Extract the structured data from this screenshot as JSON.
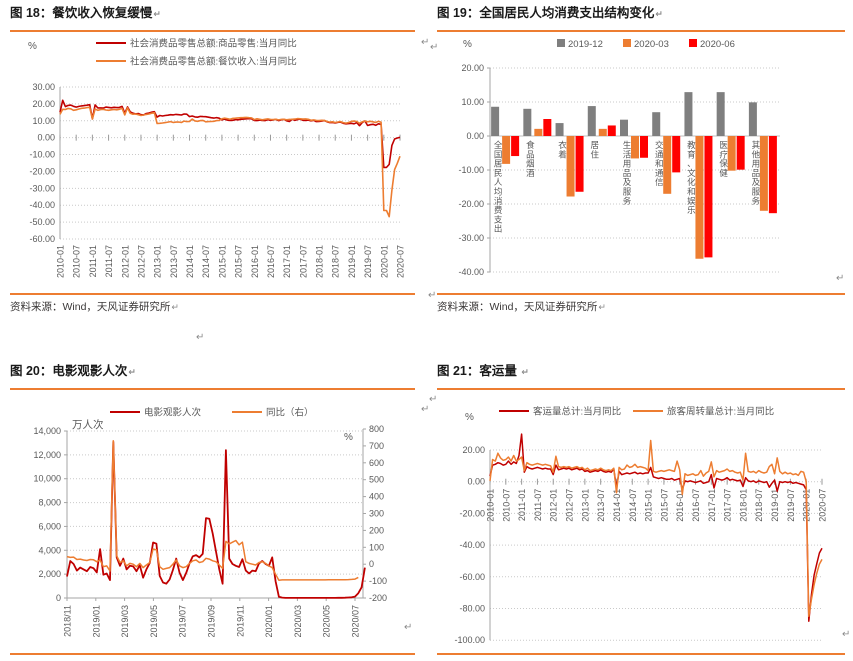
{
  "marks": {
    "return_char": "↵"
  },
  "colors": {
    "dark_red": "#C00000",
    "orange": "#ED7D31",
    "bright_red": "#FF0000",
    "gray_series": "#7F7F7F",
    "rule_orange": "#ED7D31",
    "tick_text": "#595959",
    "gridline": "#C9C9C9",
    "axis_line": "#A6A6A6"
  },
  "chart_data": [
    {
      "id": "fig18",
      "type": "line",
      "title": "图 18：餐饮收入恢复缓慢",
      "source": "资料来源：Wind，天风证券研究所",
      "ylabel": "%",
      "ylim": [
        -60,
        30
      ],
      "ytick_step": 10,
      "grid": "dotted",
      "legend_position": "top-left-stacked",
      "x_tick_labels": [
        "2010-01",
        "2010-07",
        "2011-01",
        "2011-07",
        "2012-01",
        "2012-07",
        "2013-01",
        "2013-07",
        "2014-01",
        "2014-07",
        "2015-01",
        "2015-07",
        "2016-01",
        "2016-07",
        "2017-01",
        "2017-07",
        "2018-01",
        "2018-07",
        "2019-01",
        "2019-07",
        "2020-01",
        "2020-07"
      ],
      "months_per_tick": 6,
      "series": [
        {
          "name": "社会消费品零售总额:商品零售:当月同比",
          "color": "#C00000",
          "values": [
            15.0,
            22.1,
            18.4,
            19.1,
            19.3,
            18.6,
            18.1,
            18.5,
            18.8,
            19.0,
            19.2,
            19.5,
            11.2,
            19.4,
            17.6,
            17.6,
            17.5,
            18.1,
            17.9,
            17.7,
            18.0,
            17.8,
            17.9,
            18.5,
            14.5,
            18.2,
            15.3,
            14.5,
            14.1,
            14.3,
            13.6,
            13.5,
            14.3,
            14.6,
            15.1,
            15.4,
            12.2,
            13.1,
            12.8,
            13.1,
            13.3,
            13.6,
            13.5,
            13.8,
            13.6,
            13.4,
            14.0,
            13.9,
            12.5,
            12.8,
            12.3,
            12.1,
            12.6,
            12.5,
            12.4,
            12.1,
            11.8,
            11.6,
            11.9,
            11.5,
            10.5,
            11.0,
            10.4,
            10.2,
            10.3,
            10.7,
            10.6,
            10.9,
            11.0,
            11.2,
            11.3,
            11.2,
            10.2,
            10.1,
            10.4,
            10.2,
            10.1,
            10.7,
            10.3,
            10.5,
            10.8,
            10.1,
            10.6,
            10.9,
            10.0,
            9.6,
            10.9,
            10.3,
            10.7,
            11.0,
            10.3,
            10.2,
            10.4,
            10.0,
            10.3,
            9.5,
            9.6,
            9.8,
            10.1,
            9.4,
            8.9,
            9.0,
            8.7,
            9.1,
            9.2,
            8.5,
            8.2,
            8.3,
            8.5,
            8.2,
            8.9,
            7.1,
            8.9,
            9.9,
            7.2,
            7.7,
            7.9,
            7.3,
            8.2,
            7.9,
            -17.6,
            -17.6,
            -15.8,
            -4.6,
            -0.8,
            -0.2,
            0.2
          ]
        },
        {
          "name": "社会消费品零售总额:餐饮收入:当月同比",
          "color": "#ED7D31",
          "values": [
            13.8,
            16.8,
            16.7,
            17.3,
            17.1,
            16.2,
            16.5,
            17.0,
            17.4,
            17.5,
            17.8,
            18.0,
            11.0,
            17.0,
            16.2,
            16.6,
            16.8,
            16.4,
            16.2,
            16.5,
            16.7,
            16.5,
            16.8,
            17.3,
            13.5,
            17.7,
            14.4,
            13.9,
            14.0,
            13.6,
            13.1,
            13.4,
            13.8,
            14.0,
            14.5,
            14.8,
            8.4,
            8.5,
            8.7,
            8.9,
            9.2,
            9.5,
            9.0,
            9.2,
            9.3,
            9.0,
            9.8,
            9.5,
            9.6,
            11.0,
            9.9,
            9.7,
            10.1,
            10.2,
            9.4,
            9.5,
            9.6,
            9.7,
            10.1,
            10.2,
            11.2,
            11.6,
            11.3,
            10.9,
            11.4,
            11.5,
            11.7,
            11.8,
            11.9,
            12.0,
            11.8,
            11.7,
            10.7,
            11.2,
            10.9,
            10.6,
            10.9,
            11.1,
            10.8,
            10.7,
            10.9,
            10.5,
            10.8,
            10.9,
            10.6,
            10.8,
            10.9,
            11.0,
            11.3,
            11.2,
            11.0,
            11.1,
            10.9,
            10.3,
            10.5,
            10.2,
            10.1,
            10.3,
            10.2,
            9.6,
            9.2,
            9.4,
            9.0,
            9.3,
            9.5,
            8.9,
            8.6,
            9.0,
            9.7,
            9.8,
            9.6,
            8.5,
            9.4,
            9.8,
            9.4,
            9.7,
            9.4,
            9.0,
            9.7,
            9.1,
            -43.1,
            -43.1,
            -46.8,
            -31.1,
            -18.9,
            -15.2,
            -11.0
          ]
        }
      ]
    },
    {
      "id": "fig19",
      "type": "bar",
      "title": "图 19：全国居民人均消费支出结构变化",
      "source": "资料来源：Wind，天风证券研究所",
      "ylabel": "%",
      "ylim": [
        -40,
        20
      ],
      "ytick_step": 10,
      "grid": "dotted",
      "legend_position": "top-center",
      "categories": [
        "全国居民人均消费支出",
        "食品烟酒",
        "衣着",
        "居住",
        "生活用品及服务",
        "交通和通信",
        "教育、文化和娱乐",
        "医疗保健",
        "其他用品及服务"
      ],
      "series": [
        {
          "name": "2019-12",
          "color": "#7F7F7F",
          "values": [
            8.6,
            8.0,
            3.8,
            8.8,
            4.8,
            7.0,
            12.9,
            12.9,
            9.9
          ]
        },
        {
          "name": "2020-03",
          "color": "#ED7D31",
          "values": [
            -8.2,
            2.1,
            -17.8,
            2.1,
            -6.6,
            -17.0,
            -36.1,
            -10.2,
            -22.0
          ]
        },
        {
          "name": "2020-06",
          "color": "#FF0000",
          "values": [
            -5.9,
            5.0,
            -16.4,
            3.1,
            -6.4,
            -10.7,
            -35.7,
            -9.9,
            -22.7
          ]
        }
      ]
    },
    {
      "id": "fig20",
      "type": "line-dual",
      "title": "图 20：电影观影人次",
      "left_axis": {
        "label": "万人次",
        "lim": [
          0,
          14000
        ],
        "step": 2000
      },
      "right_axis": {
        "label": "%",
        "lim": [
          -200,
          800
        ],
        "step": 100
      },
      "grid": "dotted",
      "legend_position": "top-center",
      "x_tick_labels": [
        "2018/11",
        "2019/01",
        "2019/03",
        "2019/05",
        "2019/07",
        "2019/09",
        "2019/11",
        "2020/01",
        "2020/03",
        "2020/05",
        "2020/07"
      ],
      "weeks_per_tick": 8.7,
      "n_points": 90,
      "series": [
        {
          "name": "电影观影人次",
          "color": "#C00000",
          "axis": "left",
          "values": [
            1800,
            3100,
            2850,
            2300,
            2550,
            2400,
            2250,
            2600,
            2500,
            2150,
            4100,
            1950,
            2050,
            1500,
            13100,
            3400,
            2700,
            3300,
            2400,
            2700,
            2650,
            2250,
            2750,
            1700,
            2400,
            2950,
            4650,
            4550,
            1850,
            1300,
            1200,
            1550,
            2350,
            3300,
            2100,
            1500,
            2100,
            2900,
            3500,
            3600,
            3400,
            3700,
            6700,
            6650,
            5400,
            3900,
            2400,
            1200,
            12400,
            3300,
            2850,
            2700,
            2600,
            3250,
            2300,
            2050,
            2300,
            2250,
            2900,
            3100,
            2850,
            2700,
            3400,
            1400,
            100,
            30,
            10,
            5,
            5,
            5,
            5,
            5,
            5,
            5,
            5,
            5,
            5,
            5,
            5,
            5,
            10,
            10,
            15,
            20,
            25,
            40,
            60,
            120,
            400,
            900,
            2550
          ]
        },
        {
          "name": "同比（右）",
          "color": "#ED7D31",
          "axis": "right",
          "values": [
            45,
            40,
            42,
            28,
            30,
            25,
            22,
            28,
            26,
            15,
            25,
            -15,
            -10,
            -40,
            730,
            50,
            10,
            20,
            -10,
            5,
            0,
            -15,
            5,
            -20,
            -5,
            10,
            90,
            85,
            -15,
            -30,
            -25,
            -20,
            0,
            25,
            -10,
            -20,
            -15,
            5,
            20,
            25,
            10,
            15,
            35,
            30,
            20,
            15,
            -5,
            -25,
            135,
            120,
            130,
            140,
            115,
            130,
            15,
            5,
            0,
            -5,
            10,
            15,
            5,
            -10,
            -20,
            -60,
            -95,
            -93,
            -93,
            -93,
            -93,
            -93,
            -93,
            -93,
            -93,
            -93,
            -93,
            -93,
            -93,
            -93,
            -93,
            -92,
            -92,
            -92,
            -92,
            -92,
            -92,
            -91,
            -90,
            -88,
            -78
          ]
        }
      ]
    },
    {
      "id": "fig21",
      "type": "line",
      "title": "图 21：客运量",
      "ylabel": "%",
      "ylim": [
        -100,
        20
      ],
      "ytick_step": 20,
      "grid": "dotted",
      "legend_position": "top-center",
      "x_labels_at_zero": true,
      "x_tick_labels": [
        "2010-01",
        "2010-07",
        "2011-01",
        "2011-07",
        "2012-01",
        "2012-07",
        "2013-01",
        "2013-07",
        "2014-01",
        "2014-07",
        "2015-01",
        "2015-07",
        "2016-01",
        "2016-07",
        "2017-01",
        "2017-07",
        "2018-01",
        "2018-07",
        "2019-01",
        "2019-07",
        "2020-01",
        "2020-07"
      ],
      "months_per_tick": 6,
      "series": [
        {
          "name": "客运量总计:当月同比",
          "color": "#C00000",
          "values": [
            3.5,
            10.5,
            11.0,
            12.0,
            11.5,
            10.5,
            11.0,
            13.0,
            11.0,
            12.5,
            11.5,
            16.5,
            30.0,
            6.0,
            9.5,
            8.5,
            8.0,
            8.5,
            9.0,
            8.5,
            8.0,
            8.5,
            8.0,
            8.0,
            4.5,
            10.5,
            7.5,
            8.0,
            8.5,
            8.0,
            8.5,
            7.5,
            8.0,
            8.5,
            7.5,
            8.0,
            6.5,
            7.0,
            6.0,
            6.5,
            7.0,
            6.5,
            7.5,
            6.5,
            6.0,
            6.5,
            6.0,
            8.0,
            -4.0,
            6.5,
            4.5,
            5.0,
            5.5,
            5.0,
            5.5,
            6.0,
            5.0,
            5.5,
            5.0,
            5.5,
            5.5,
            9.0,
            3.0,
            2.5,
            2.0,
            2.5,
            2.0,
            1.5,
            1.5,
            2.0,
            1.0,
            1.5,
            2.0,
            -5.0,
            0.5,
            0.0,
            0.5,
            0.0,
            -0.5,
            0.0,
            0.5,
            -1.0,
            -0.5,
            0.0,
            4.5,
            -4.0,
            2.0,
            1.5,
            1.0,
            1.5,
            2.5,
            1.0,
            1.5,
            1.0,
            0.5,
            1.0,
            -3.0,
            2.5,
            0.5,
            0.0,
            0.5,
            -0.5,
            0.5,
            0.0,
            -0.5,
            0.0,
            -3.5,
            -1.0,
            1.0,
            -6.0,
            0.0,
            -0.5,
            0.0,
            -0.5,
            0.0,
            -1.0,
            -0.5,
            -1.0,
            -1.5,
            -2.0,
            -5.0,
            -88.0,
            -71.0,
            -59.0,
            -52.0,
            -45.0,
            -42.0
          ]
        },
        {
          "name": "旅客周转量总计:当月同比",
          "color": "#ED7D31",
          "values": [
            0.5,
            14.0,
            13.0,
            18.0,
            15.0,
            13.5,
            14.0,
            15.5,
            13.0,
            16.5,
            13.0,
            14.0,
            15.5,
            7.0,
            12.0,
            11.0,
            10.5,
            11.0,
            11.5,
            11.0,
            10.5,
            11.0,
            10.5,
            10.0,
            6.0,
            16.0,
            9.5,
            9.0,
            9.5,
            9.0,
            9.5,
            8.5,
            9.0,
            9.5,
            8.5,
            9.0,
            7.5,
            8.5,
            7.0,
            7.5,
            8.0,
            7.5,
            8.5,
            7.5,
            7.0,
            7.5,
            7.0,
            8.5,
            -7.0,
            9.0,
            7.5,
            8.0,
            10.5,
            9.0,
            9.5,
            11.0,
            9.0,
            9.5,
            9.0,
            8.5,
            7.0,
            26.0,
            6.5,
            6.0,
            6.5,
            7.0,
            6.5,
            7.0,
            7.5,
            7.0,
            6.5,
            13.0,
            7.5,
            -8.0,
            5.0,
            4.0,
            4.5,
            5.0,
            4.0,
            4.5,
            7.0,
            3.5,
            5.5,
            6.5,
            12.5,
            3.0,
            7.0,
            6.0,
            6.5,
            7.0,
            8.0,
            6.5,
            7.0,
            6.0,
            5.5,
            6.0,
            1.0,
            18.0,
            6.5,
            6.0,
            6.5,
            5.5,
            7.0,
            6.0,
            5.5,
            6.0,
            9.5,
            11.0,
            5.0,
            15.0,
            6.5,
            5.0,
            6.0,
            5.0,
            5.5,
            4.5,
            5.0,
            4.0,
            6.5,
            6.0,
            0.0,
            -85.0,
            -74.0,
            -65.0,
            -58.0,
            -52.0,
            -49.0
          ]
        }
      ]
    }
  ]
}
